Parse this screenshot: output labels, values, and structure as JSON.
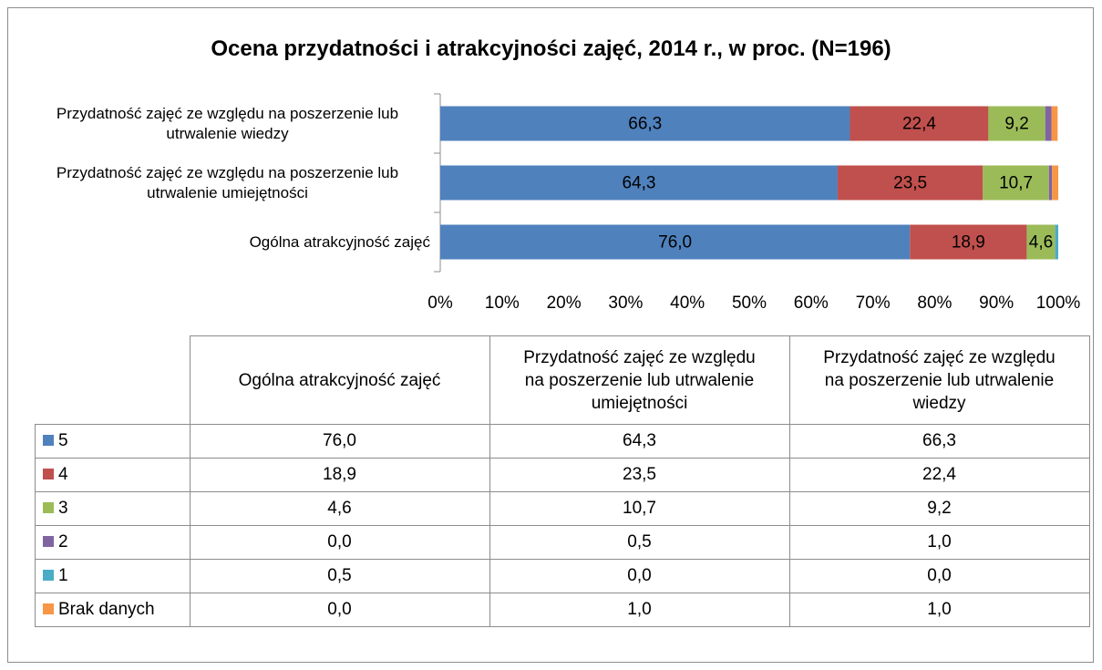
{
  "chart_data": {
    "type": "bar",
    "orientation": "horizontal",
    "stacked": true,
    "title": "Ocena przydatności i atrakcyjności zajęć, 2014 r., w proc. (N=196)",
    "categories": [
      "Ogólna atrakcyjność zajęć",
      "Przydatność zajęć ze względu na poszerzenie lub utrwalenie umiejętności",
      "Przydatność zajęć ze względu na poszerzenie lub utrwalenie wiedzy"
    ],
    "series": [
      {
        "name": "5",
        "color": "#4f81bd",
        "values": [
          76.0,
          64.3,
          66.3
        ],
        "value_labels": [
          "76,0",
          "64,3",
          "66,3"
        ]
      },
      {
        "name": "4",
        "color": "#c0504d",
        "values": [
          18.9,
          23.5,
          22.4
        ],
        "value_labels": [
          "18,9",
          "23,5",
          "22,4"
        ]
      },
      {
        "name": "3",
        "color": "#9bbb59",
        "values": [
          4.6,
          10.7,
          9.2
        ],
        "value_labels": [
          "4,6",
          "10,7",
          "9,2"
        ]
      },
      {
        "name": "2",
        "color": "#8064a2",
        "values": [
          0.0,
          0.5,
          1.0
        ],
        "value_labels": [
          "0,0",
          "0,5",
          "1,0"
        ]
      },
      {
        "name": "1",
        "color": "#4bacc6",
        "values": [
          0.5,
          0.0,
          0.0
        ],
        "value_labels": [
          "0,5",
          "0,0",
          "0,0"
        ]
      },
      {
        "name": "Brak danych",
        "color": "#f79646",
        "values": [
          0.0,
          1.0,
          1.0
        ],
        "value_labels": [
          "0,0",
          "1,0",
          "1,0"
        ]
      }
    ],
    "xlim": [
      0,
      100
    ],
    "xticks": [
      {
        "value": 0,
        "label": "0%"
      },
      {
        "value": 10,
        "label": "10%"
      },
      {
        "value": 20,
        "label": "20%"
      },
      {
        "value": 30,
        "label": "30%"
      },
      {
        "value": 40,
        "label": "40%"
      },
      {
        "value": 50,
        "label": "50%"
      },
      {
        "value": 60,
        "label": "60%"
      },
      {
        "value": 70,
        "label": "70%"
      },
      {
        "value": 80,
        "label": "80%"
      },
      {
        "value": 90,
        "label": "90%"
      },
      {
        "value": 100,
        "label": "100%"
      }
    ],
    "grid": false,
    "data_table": true
  }
}
